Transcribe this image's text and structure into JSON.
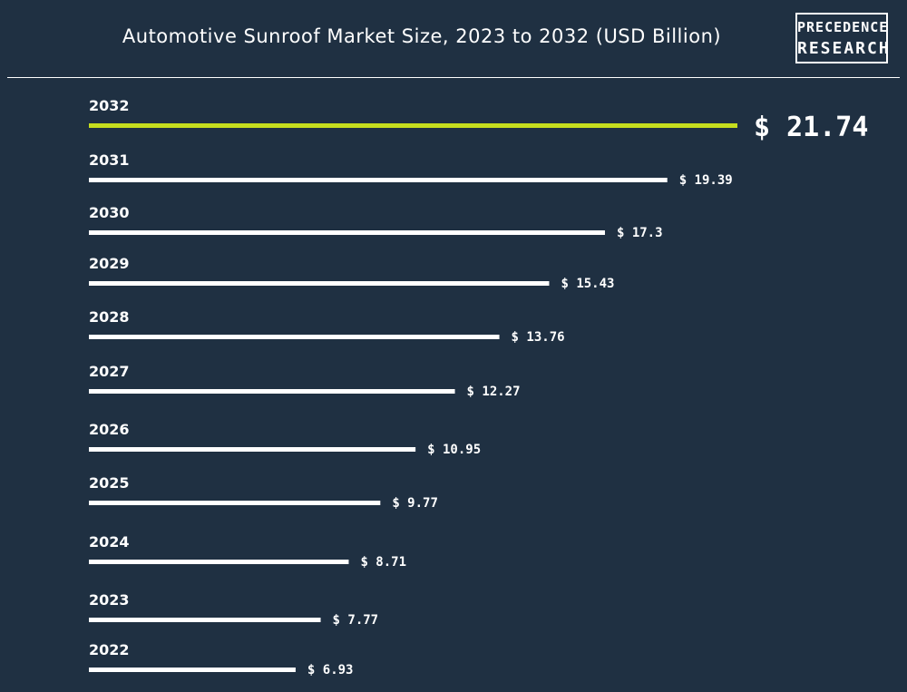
{
  "header": {
    "title": "Automotive Sunroof Market Size, 2023 to 2032 (USD Billion)",
    "logo_line1": "PRECEDENCE",
    "logo_line2": "RESEARCH"
  },
  "colors": {
    "background": "#1f3042",
    "bar": "#ffffff",
    "highlight_bar": "#c5dd1e",
    "text": "#ffffff"
  },
  "chart_data": {
    "type": "bar",
    "orientation": "horizontal",
    "title": "Automotive Sunroof Market Size, 2023 to 2032 (USD Billion)",
    "categories": [
      "2032",
      "2031",
      "2030",
      "2029",
      "2028",
      "2027",
      "2026",
      "2025",
      "2024",
      "2023",
      "2022"
    ],
    "values": [
      21.74,
      19.39,
      17.3,
      15.43,
      13.76,
      12.27,
      10.95,
      9.77,
      8.71,
      7.77,
      6.93
    ],
    "value_labels": [
      "$ 21.74",
      "$ 19.39",
      "$ 17.3",
      "$ 15.43",
      "$ 13.76",
      "$ 12.27",
      "$ 10.95",
      "$ 9.77",
      "$ 8.71",
      "$ 7.77",
      "$ 6.93"
    ],
    "highlight_category": "2032",
    "xlim": [
      0,
      21.74
    ],
    "grid": false,
    "legend": "none"
  }
}
